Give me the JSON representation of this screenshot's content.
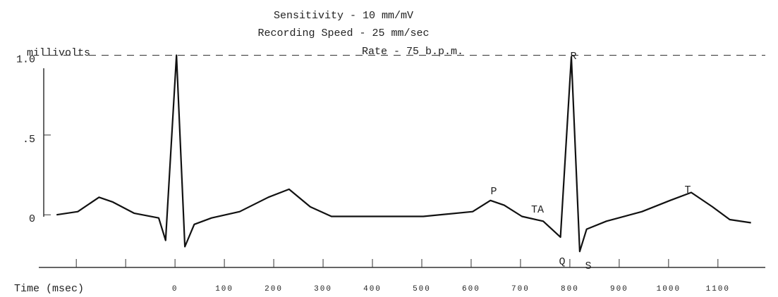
{
  "chart_data": {
    "type": "line",
    "title": "Sensitivity - 10 mm/mV",
    "subtitle": "Recording Speed - 25 mm/sec",
    "rate_label": "Rate - 75 b.p.m.",
    "y_label": "millivolts",
    "x_label": "Time (msec)",
    "xlim": [
      -276,
      1196
    ],
    "ylim": [
      -0.33,
      1.17
    ],
    "xticks": [
      0,
      100,
      200,
      300,
      400,
      500,
      600,
      700,
      800,
      900,
      1000,
      1100
    ],
    "xminorticks": [
      -200,
      -100
    ],
    "yticks": [
      0,
      {
        "value": 0.5,
        "label": ".5"
      },
      {
        "value": 1,
        "label": "1.0"
      }
    ],
    "color": "#111",
    "x": [
      -240,
      -197,
      -154,
      -126,
      -83,
      -33,
      -19,
      3,
      20,
      39,
      74,
      131,
      189,
      231,
      274,
      317,
      503,
      603,
      639,
      667,
      703,
      746,
      781,
      803,
      820,
      834,
      874,
      946,
      1003,
      1046,
      1089,
      1124,
      1167
    ],
    "values": [
      0,
      0.02,
      0.11,
      0.08,
      0.01,
      -0.02,
      -0.16,
      1.0,
      -0.2,
      -0.06,
      -0.02,
      0.02,
      0.11,
      0.16,
      0.05,
      -0.01,
      -0.01,
      0.02,
      0.09,
      0.06,
      -0.01,
      -0.04,
      -0.14,
      0.99,
      -0.23,
      -0.09,
      -0.04,
      0.02,
      0.09,
      0.14,
      0.05,
      -0.03,
      -0.05
    ],
    "annotations": [
      "P",
      "TA",
      "R",
      "Q",
      "S",
      "T"
    ]
  }
}
